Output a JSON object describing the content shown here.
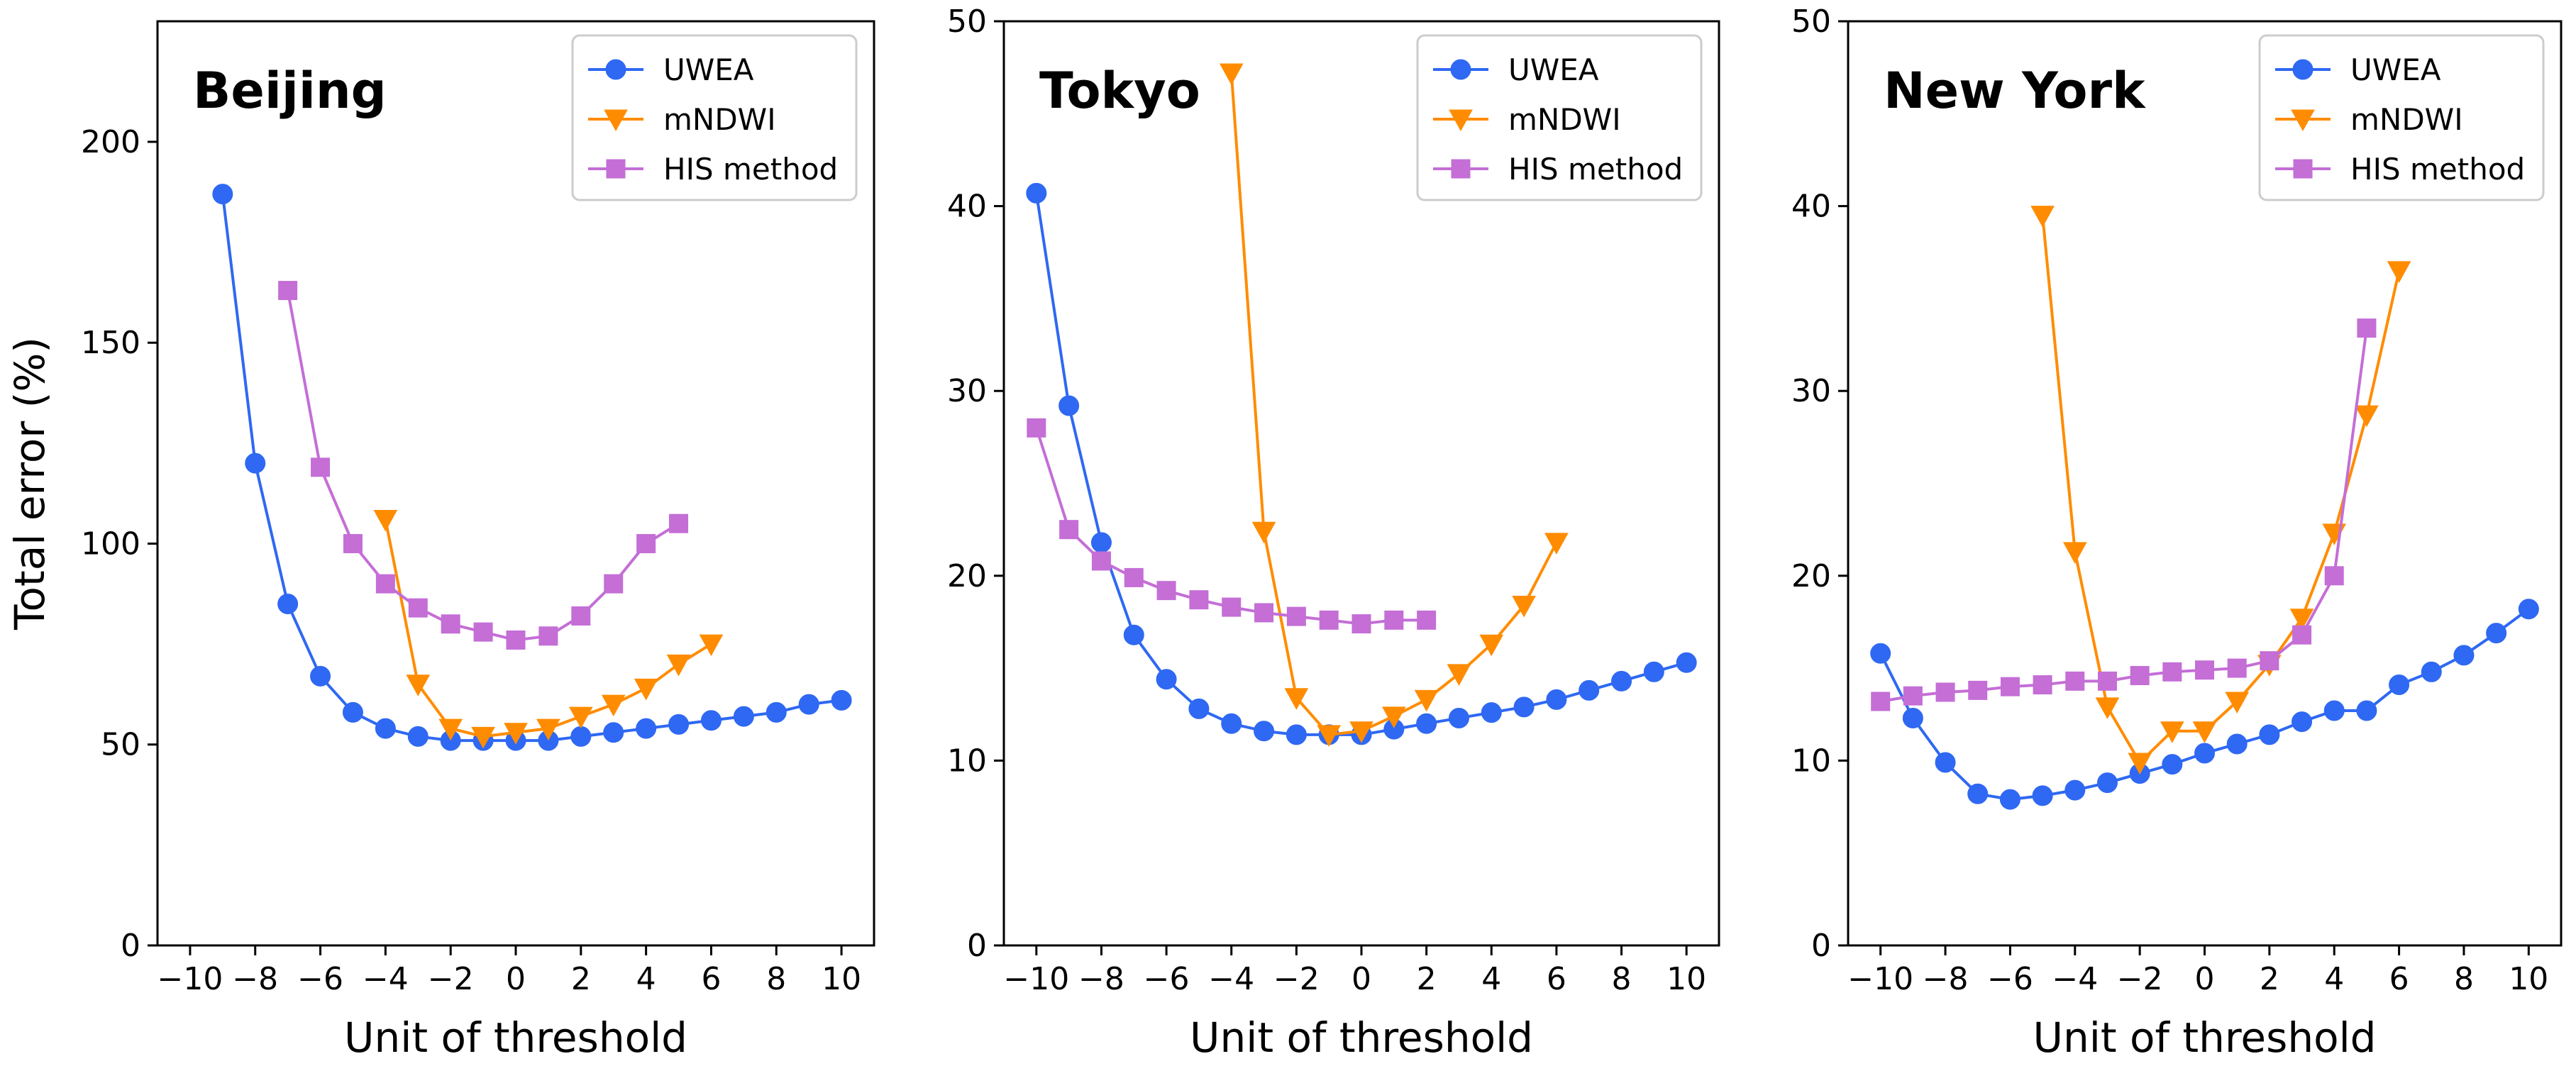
{
  "chart_data": [
    {
      "type": "line",
      "title": "Beijing",
      "xlabel": "Unit of threshold",
      "ylabel": "Total error (%)",
      "xlim": [
        -11,
        11
      ],
      "ylim": [
        0,
        230
      ],
      "xticks": [
        -10,
        -8,
        -6,
        -4,
        -2,
        0,
        2,
        4,
        6,
        8,
        10
      ],
      "xtick_labels": [
        "−10",
        "−8",
        "−6",
        "−4",
        "−2",
        "0",
        "2",
        "4",
        "6",
        "8",
        "10"
      ],
      "yticks": [
        0,
        50,
        100,
        150,
        200
      ],
      "ytick_labels": [
        "0",
        "50",
        "100",
        "150",
        "200"
      ],
      "legend": "top-right",
      "series": [
        {
          "name": "UWEA",
          "color": "#2f68f2",
          "marker": "circle",
          "x": [
            -9,
            -8,
            -7,
            -6,
            -5,
            -4,
            -3,
            -2,
            -1,
            0,
            1,
            2,
            3,
            4,
            5,
            6,
            7,
            8,
            9,
            10
          ],
          "y": [
            187,
            120,
            85,
            67,
            58,
            54,
            52,
            51,
            51,
            51,
            51,
            52,
            53,
            54,
            55,
            56,
            57,
            58,
            60,
            61
          ]
        },
        {
          "name": "mNDWI",
          "color": "#ff8c00",
          "marker": "triangle-down",
          "x": [
            -4,
            -3,
            -2,
            -1,
            0,
            1,
            2,
            3,
            4,
            5,
            6
          ],
          "y": [
            106,
            65,
            54,
            52,
            53,
            54,
            57,
            60,
            64,
            70,
            75
          ]
        },
        {
          "name": "HIS method",
          "color": "#c46ed6",
          "marker": "square",
          "x": [
            -7,
            -6,
            -5,
            -4,
            -3,
            -2,
            -1,
            0,
            1,
            2,
            3,
            4,
            5
          ],
          "y": [
            163,
            119,
            100,
            90,
            84,
            80,
            78,
            76,
            77,
            82,
            90,
            100,
            105
          ]
        }
      ]
    },
    {
      "type": "line",
      "title": "Tokyo",
      "xlabel": "Unit of threshold",
      "ylabel": "",
      "xlim": [
        -11,
        11
      ],
      "ylim": [
        0,
        50
      ],
      "xticks": [
        -10,
        -8,
        -6,
        -4,
        -2,
        0,
        2,
        4,
        6,
        8,
        10
      ],
      "xtick_labels": [
        "−10",
        "−8",
        "−6",
        "−4",
        "−2",
        "0",
        "2",
        "4",
        "6",
        "8",
        "10"
      ],
      "yticks": [
        0,
        10,
        20,
        30,
        40,
        50
      ],
      "ytick_labels": [
        "0",
        "10",
        "20",
        "30",
        "40",
        "50"
      ],
      "legend": "top-right",
      "series": [
        {
          "name": "UWEA",
          "color": "#2f68f2",
          "marker": "circle",
          "x": [
            -10,
            -9,
            -8,
            -7,
            -6,
            -5,
            -4,
            -3,
            -2,
            -1,
            0,
            1,
            2,
            3,
            4,
            5,
            6,
            7,
            8,
            9,
            10
          ],
          "y": [
            40.7,
            29.2,
            21.8,
            16.8,
            14.4,
            12.8,
            12.0,
            11.6,
            11.4,
            11.4,
            11.4,
            11.7,
            12.0,
            12.3,
            12.6,
            12.9,
            13.3,
            13.8,
            14.3,
            14.8,
            15.3
          ]
        },
        {
          "name": "mNDWI",
          "color": "#ff8c00",
          "marker": "triangle-down",
          "x": [
            -4,
            -3,
            -2,
            -1,
            0,
            1,
            2,
            3,
            4,
            5,
            6
          ],
          "y": [
            47.2,
            22.4,
            13.4,
            11.4,
            11.6,
            12.4,
            13.3,
            14.7,
            16.3,
            18.4,
            21.8
          ]
        },
        {
          "name": "HIS method",
          "color": "#c46ed6",
          "marker": "square",
          "x": [
            -10,
            -9,
            -8,
            -7,
            -6,
            -5,
            -4,
            -3,
            -2,
            -1,
            0,
            1,
            2
          ],
          "y": [
            28.0,
            22.5,
            20.8,
            19.9,
            19.2,
            18.7,
            18.3,
            18.0,
            17.8,
            17.6,
            17.4,
            17.6,
            17.6
          ]
        }
      ]
    },
    {
      "type": "line",
      "title": "New York",
      "xlabel": "Unit of threshold",
      "ylabel": "",
      "xlim": [
        -11,
        11
      ],
      "ylim": [
        0,
        50
      ],
      "xticks": [
        -10,
        -8,
        -6,
        -4,
        -2,
        0,
        2,
        4,
        6,
        8,
        10
      ],
      "xtick_labels": [
        "−10",
        "−8",
        "−6",
        "−4",
        "−2",
        "0",
        "2",
        "4",
        "6",
        "8",
        "10"
      ],
      "yticks": [
        0,
        10,
        20,
        30,
        40,
        50
      ],
      "ytick_labels": [
        "0",
        "10",
        "20",
        "30",
        "40",
        "50"
      ],
      "legend": "top-right",
      "series": [
        {
          "name": "UWEA",
          "color": "#2f68f2",
          "marker": "circle",
          "x": [
            -10,
            -9,
            -8,
            -7,
            -6,
            -5,
            -4,
            -3,
            -2,
            -1,
            0,
            1,
            2,
            3,
            4,
            5,
            6,
            7,
            8,
            9,
            10
          ],
          "y": [
            15.8,
            12.3,
            9.9,
            8.2,
            7.9,
            8.1,
            8.4,
            8.8,
            9.3,
            9.8,
            10.4,
            10.9,
            11.4,
            12.1,
            12.7,
            12.7,
            14.1,
            14.8,
            15.7,
            16.9,
            18.2
          ]
        },
        {
          "name": "mNDWI",
          "color": "#ff8c00",
          "marker": "triangle-down",
          "x": [
            -5,
            -4,
            -3,
            -2,
            -1,
            0,
            1,
            2,
            3,
            4,
            5,
            6
          ],
          "y": [
            39.5,
            21.3,
            12.9,
            9.9,
            11.6,
            11.6,
            13.2,
            15.2,
            17.7,
            22.3,
            28.7,
            36.5
          ]
        },
        {
          "name": "HIS method",
          "color": "#c46ed6",
          "marker": "square",
          "x": [
            -10,
            -9,
            -8,
            -7,
            -6,
            -5,
            -4,
            -3,
            -2,
            -1,
            0,
            1,
            2,
            3,
            4,
            5
          ],
          "y": [
            13.2,
            13.5,
            13.7,
            13.8,
            14.0,
            14.1,
            14.3,
            14.3,
            14.6,
            14.8,
            14.9,
            15.0,
            15.4,
            16.8,
            20.0,
            33.4
          ]
        }
      ]
    }
  ]
}
